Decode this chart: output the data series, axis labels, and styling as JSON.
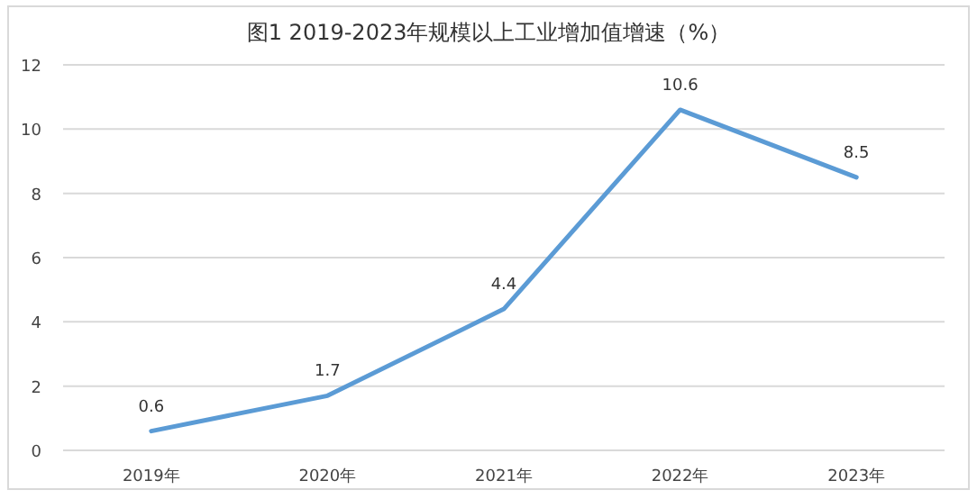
{
  "chart_data": {
    "type": "line",
    "title": "图1 2019-2023年规模以上工业增加值增速（%）",
    "categories": [
      "2019年",
      "2020年",
      "2021年",
      "2022年",
      "2023年"
    ],
    "values": [
      0.6,
      1.7,
      4.4,
      10.6,
      8.5
    ],
    "color": "#5b9bd5",
    "ylim": [
      0,
      12
    ],
    "yticks": [
      0,
      2,
      4,
      6,
      8,
      10,
      12
    ],
    "grid": "y",
    "data_labels": true
  }
}
